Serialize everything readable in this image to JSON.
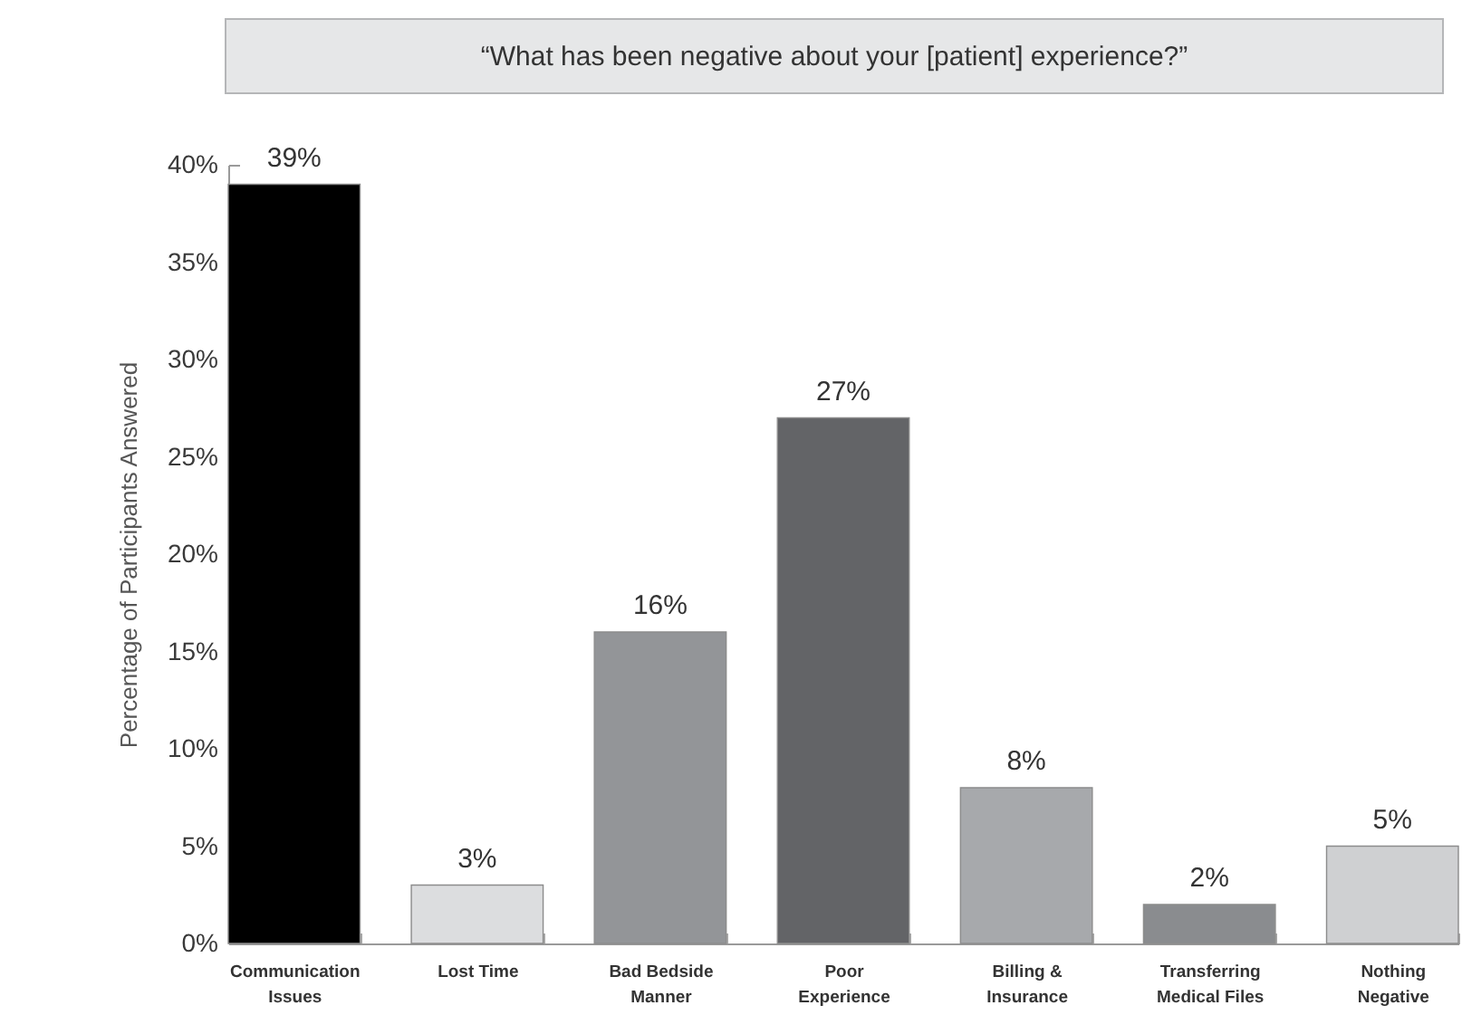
{
  "chart_data": {
    "type": "bar",
    "title": "“What has been negative about your [patient] experience?”",
    "ylabel": "Percentage of Participants Answered",
    "categories": [
      "Communication Issues",
      "Lost Time",
      "Bad Bedside Manner",
      "Poor Experience",
      "Billing & Insurance",
      "Transferring Medical Files",
      "Nothing Negative"
    ],
    "values": [
      39,
      3,
      16,
      27,
      8,
      2,
      5
    ],
    "colors": [
      "#000000",
      "#dcdddf",
      "#939598",
      "#636467",
      "#a7a9ac",
      "#8a8c8f",
      "#cfd0d2"
    ],
    "value_labels": [
      "39%",
      "3%",
      "16%",
      "27%",
      "8%",
      "2%",
      "5%"
    ],
    "ylim": [
      0,
      40
    ],
    "yticks": [
      {
        "value": 0,
        "label": "0%"
      },
      {
        "value": 5,
        "label": "5%"
      },
      {
        "value": 10,
        "label": "10%"
      },
      {
        "value": 15,
        "label": "15%"
      },
      {
        "value": 20,
        "label": "20%"
      },
      {
        "value": 25,
        "label": "25%"
      },
      {
        "value": 30,
        "label": "30%"
      },
      {
        "value": 35,
        "label": "35%"
      },
      {
        "value": 40,
        "label": "40%"
      }
    ]
  }
}
